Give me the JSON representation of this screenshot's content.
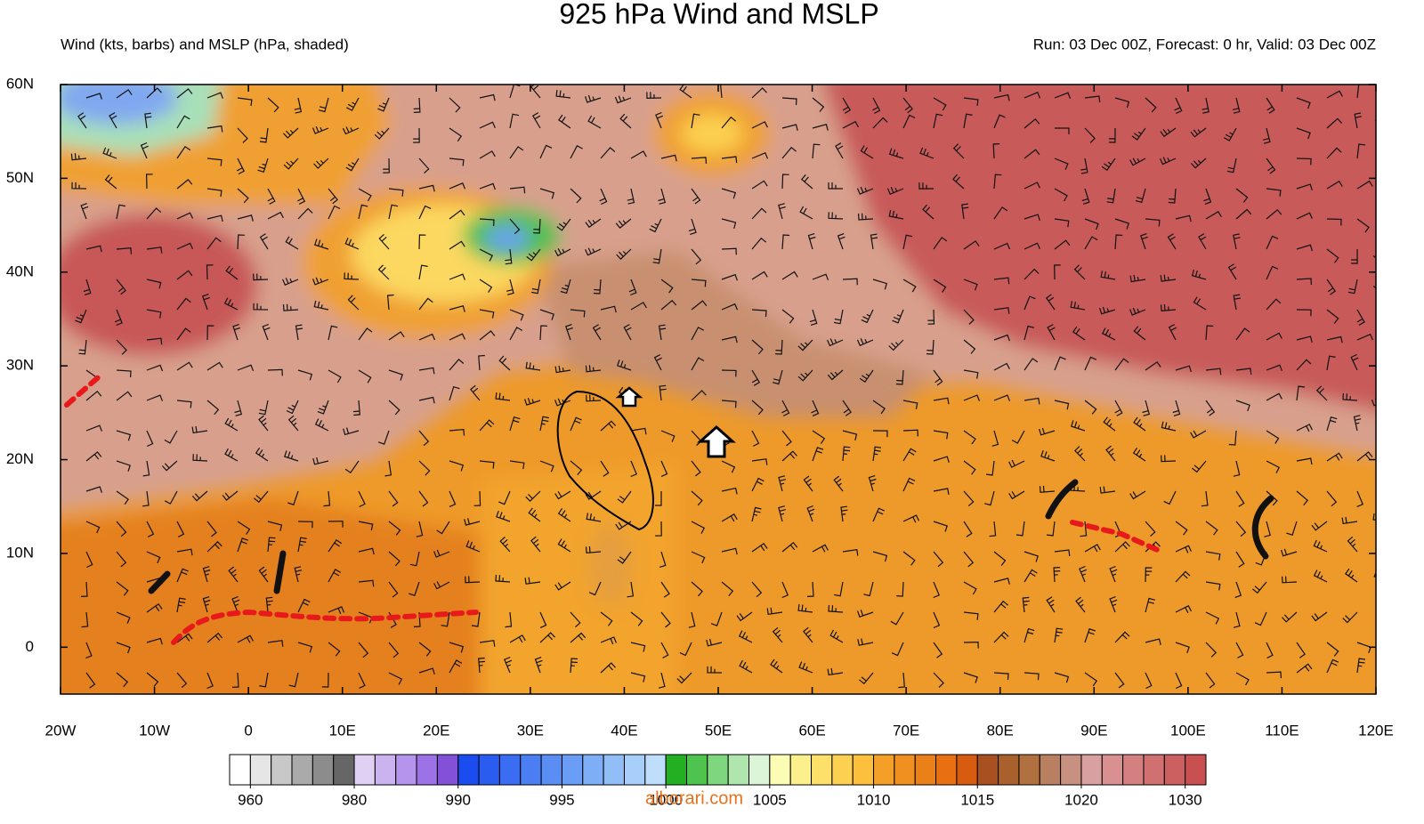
{
  "header": {
    "title": "925 hPa Wind and MSLP",
    "left": "Wind (kts, barbs) and MSLP (hPa, shaded)",
    "right": "Run: 03 Dec 00Z, Forecast: 0 hr, Valid: 03 Dec 00Z"
  },
  "map": {
    "xlim": [
      -20,
      120
    ],
    "ylim": [
      -5,
      60
    ],
    "xticks": [
      {
        "value": -20,
        "label": "20W"
      },
      {
        "value": -10,
        "label": "10W"
      },
      0,
      {
        "value": 10,
        "label": "10E"
      },
      {
        "value": 20,
        "label": "20E"
      },
      {
        "value": 30,
        "label": "30E"
      },
      {
        "value": 40,
        "label": "40E"
      },
      {
        "value": 50,
        "label": "50E"
      },
      {
        "value": 60,
        "label": "60E"
      },
      {
        "value": 70,
        "label": "70E"
      },
      {
        "value": 80,
        "label": "80E"
      },
      {
        "value": 90,
        "label": "90E"
      },
      {
        "value": 100,
        "label": "100E"
      },
      {
        "value": 110,
        "label": "110E"
      },
      {
        "value": 120,
        "label": "120E"
      }
    ],
    "yticks": [
      0,
      {
        "value": 10,
        "label": "10N"
      },
      {
        "value": 20,
        "label": "20N"
      },
      {
        "value": 30,
        "label": "30N"
      },
      {
        "value": 40,
        "label": "40N"
      },
      {
        "value": 50,
        "label": "50N"
      },
      {
        "value": 60,
        "label": "60N"
      }
    ]
  },
  "colorbar": {
    "colors": [
      "#ffffff",
      "#e6e6e6",
      "#c8c8c8",
      "#aaaaaa",
      "#8c8c8c",
      "#666666",
      "#e0d0f4",
      "#cbb3f0",
      "#b494ec",
      "#9c72e6",
      "#8350d8",
      "#1a4cf0",
      "#2a5cf0",
      "#3a6df2",
      "#4a7ef2",
      "#5a8ef4",
      "#6a9ef6",
      "#7eaef6",
      "#92bef8",
      "#a8cefa",
      "#bedefc",
      "#22b022",
      "#4ec44e",
      "#7ed67e",
      "#aee6ae",
      "#dcf4d8",
      "#fcfcb4",
      "#fcf08c",
      "#fce06a",
      "#fcd050",
      "#fcc03c",
      "#f4a028",
      "#f09020",
      "#ec8018",
      "#e87010",
      "#d85c10",
      "#a85020",
      "#a8602c",
      "#b07040",
      "#b88060",
      "#c89080",
      "#d8a0a0",
      "#d89090",
      "#d48080",
      "#d07070",
      "#cc6060",
      "#c85050"
    ],
    "ticks": [
      960,
      980,
      990,
      995,
      1000,
      1005,
      1010,
      1015,
      1020,
      1030
    ]
  },
  "watermark": "alborari.com"
}
